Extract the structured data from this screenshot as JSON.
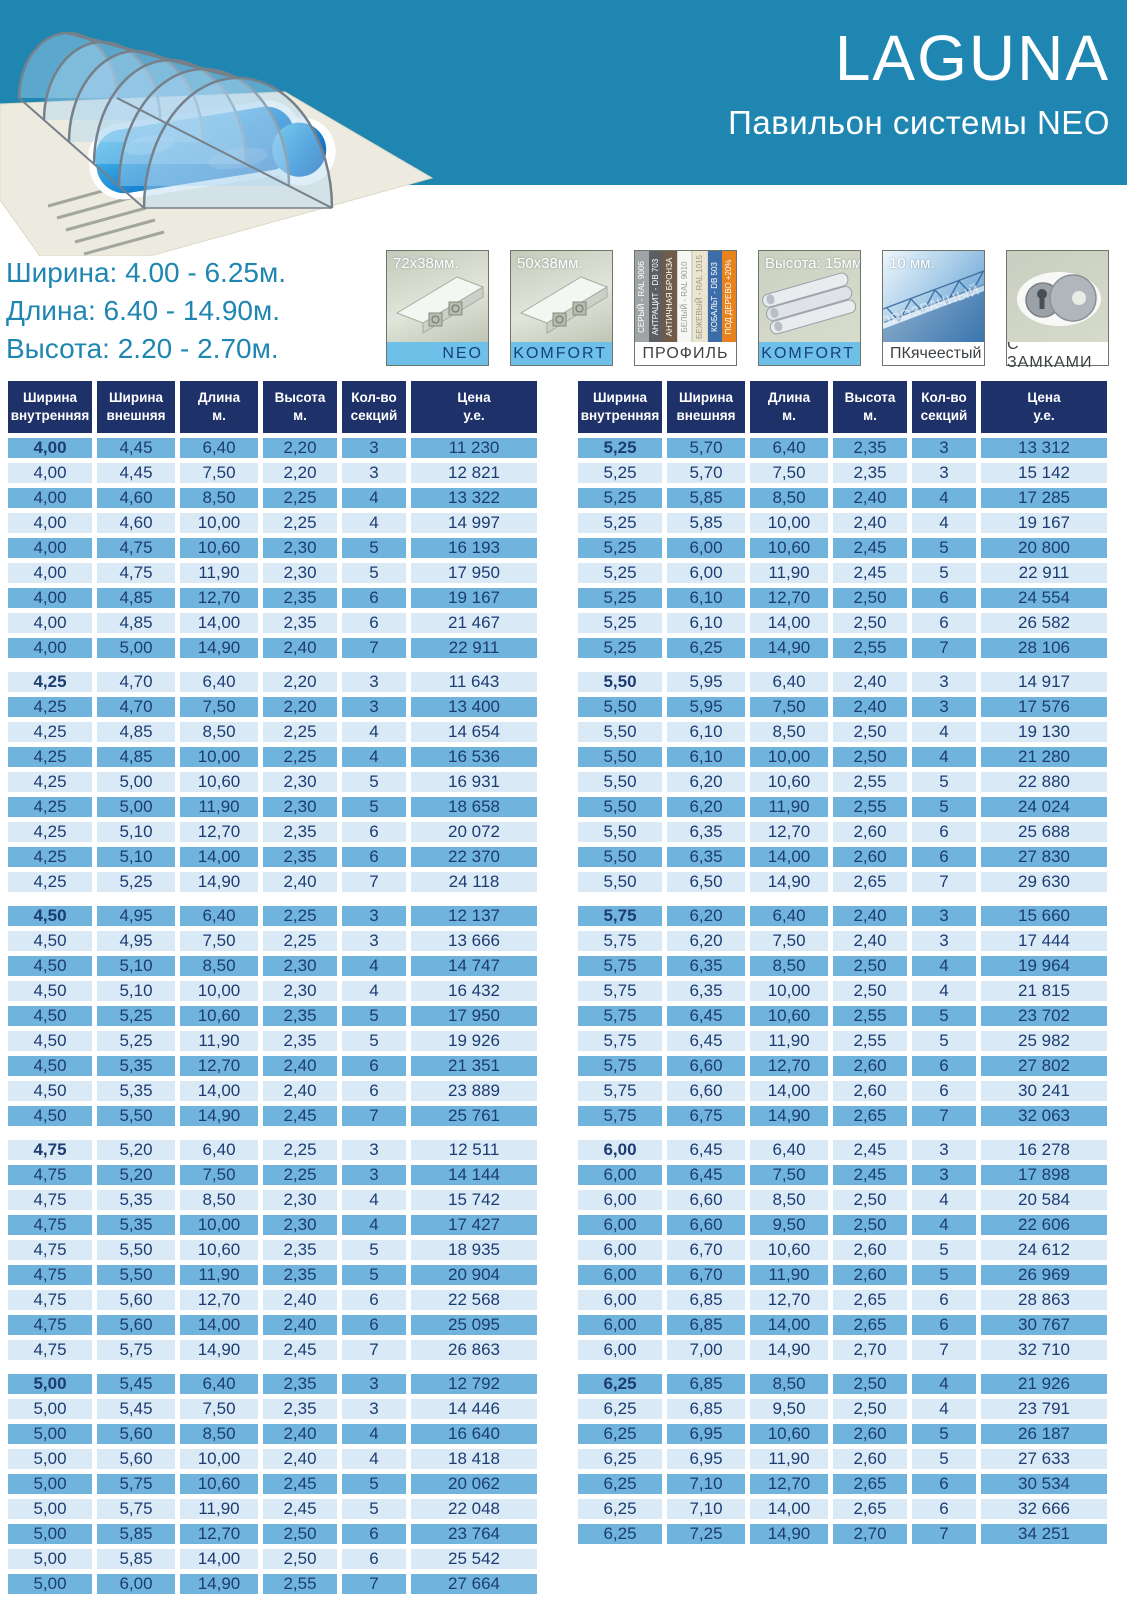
{
  "colors": {
    "header_blue": "#1f86b2",
    "navy": "#1e3168",
    "cell_text": "#1c3c72",
    "row_dark": "#70b4dd",
    "row_light": "#d9e9f6",
    "band_blue": "#6ec0e8"
  },
  "header": {
    "title": "LAGUNA",
    "subtitle": "Павильон системы NEO"
  },
  "specs": {
    "lines": [
      "Ширина: 4.00 - 6.25м.",
      "Длина: 6.40 - 14.90м.",
      "Высота: 2.20 - 2.70м."
    ]
  },
  "badges": [
    {
      "type": "profile",
      "caption": "72x38мм.",
      "band": "NEO",
      "band_style": "blue"
    },
    {
      "type": "profile",
      "caption": "50x38мм.",
      "band": "KOMFORT",
      "band_style": "blue"
    },
    {
      "type": "stripes",
      "caption": "",
      "band": "ПРОФИЛЬ",
      "band_style": "white",
      "stripes": [
        {
          "label": "СЕРЫЙ - RAL 9006",
          "bg": "#9fa4a8",
          "fg": "#ffffff"
        },
        {
          "label": "АНТРАЦИТ - DB 703",
          "bg": "#5c5e61",
          "fg": "#ffffff"
        },
        {
          "label": "АНТИЧНАЯ БРОНЗА",
          "bg": "#6f5b47",
          "fg": "#ffffff"
        },
        {
          "label": "БЕЛЫЙ - RAL 9010",
          "bg": "#f7f7f3",
          "fg": "#9b9b95"
        },
        {
          "label": "БЕЖЕВЫЙ - RAL 1015",
          "bg": "#ebe4cf",
          "fg": "#9b9b8f"
        },
        {
          "label": "КОБАЛЬТ - DB 503",
          "bg": "#3d6da9",
          "fg": "#ffffff"
        },
        {
          "label": "ПОД ДЕРЕВО +20%",
          "bg": "#e8821d",
          "fg": "#ffffff"
        }
      ]
    },
    {
      "type": "panel",
      "caption": "Высота: 15мм.",
      "band": "KOMFORT",
      "band_style": "blue"
    },
    {
      "type": "polycarb",
      "caption": "10 мм.",
      "overlay": "ПРОЗРАЧНЫЙ",
      "band_left": "ПК",
      "band_right": "ячеестый",
      "band_style": "white"
    },
    {
      "type": "lock",
      "caption": "",
      "band": "С ЗАМКАМИ",
      "band_style": "white"
    }
  ],
  "table": {
    "headers": [
      "Ширина\nвнутренняя",
      "Ширина\nвнешняя",
      "Длина\nм.",
      "Высота\nм.",
      "Кол-во\nсекций",
      "Цена\nу.е."
    ],
    "left_groups": [
      {
        "width": "4,00",
        "rows": [
          [
            "4,00",
            "4,45",
            "6,40",
            "2,20",
            "3",
            "11 230"
          ],
          [
            "4,00",
            "4,45",
            "7,50",
            "2,20",
            "3",
            "12 821"
          ],
          [
            "4,00",
            "4,60",
            "8,50",
            "2,25",
            "4",
            "13 322"
          ],
          [
            "4,00",
            "4,60",
            "10,00",
            "2,25",
            "4",
            "14 997"
          ],
          [
            "4,00",
            "4,75",
            "10,60",
            "2,30",
            "5",
            "16 193"
          ],
          [
            "4,00",
            "4,75",
            "11,90",
            "2,30",
            "5",
            "17 950"
          ],
          [
            "4,00",
            "4,85",
            "12,70",
            "2,35",
            "6",
            "19 167"
          ],
          [
            "4,00",
            "4,85",
            "14,00",
            "2,35",
            "6",
            "21 467"
          ],
          [
            "4,00",
            "5,00",
            "14,90",
            "2,40",
            "7",
            "22 911"
          ]
        ]
      },
      {
        "width": "4,25",
        "rows": [
          [
            "4,25",
            "4,70",
            "6,40",
            "2,20",
            "3",
            "11 643"
          ],
          [
            "4,25",
            "4,70",
            "7,50",
            "2,20",
            "3",
            "13 400"
          ],
          [
            "4,25",
            "4,85",
            "8,50",
            "2,25",
            "4",
            "14 654"
          ],
          [
            "4,25",
            "4,85",
            "10,00",
            "2,25",
            "4",
            "16 536"
          ],
          [
            "4,25",
            "5,00",
            "10,60",
            "2,30",
            "5",
            "16 931"
          ],
          [
            "4,25",
            "5,00",
            "11,90",
            "2,30",
            "5",
            "18 658"
          ],
          [
            "4,25",
            "5,10",
            "12,70",
            "2,35",
            "6",
            "20 072"
          ],
          [
            "4,25",
            "5,10",
            "14,00",
            "2,35",
            "6",
            "22 370"
          ],
          [
            "4,25",
            "5,25",
            "14,90",
            "2,40",
            "7",
            "24 118"
          ]
        ]
      },
      {
        "width": "4,50",
        "rows": [
          [
            "4,50",
            "4,95",
            "6,40",
            "2,25",
            "3",
            "12 137"
          ],
          [
            "4,50",
            "4,95",
            "7,50",
            "2,25",
            "3",
            "13 666"
          ],
          [
            "4,50",
            "5,10",
            "8,50",
            "2,30",
            "4",
            "14 747"
          ],
          [
            "4,50",
            "5,10",
            "10,00",
            "2,30",
            "4",
            "16 432"
          ],
          [
            "4,50",
            "5,25",
            "10,60",
            "2,35",
            "5",
            "17 950"
          ],
          [
            "4,50",
            "5,25",
            "11,90",
            "2,35",
            "5",
            "19 926"
          ],
          [
            "4,50",
            "5,35",
            "12,70",
            "2,40",
            "6",
            "21 351"
          ],
          [
            "4,50",
            "5,35",
            "14,00",
            "2,40",
            "6",
            "23 889"
          ],
          [
            "4,50",
            "5,50",
            "14,90",
            "2,45",
            "7",
            "25 761"
          ]
        ]
      },
      {
        "width": "4,75",
        "rows": [
          [
            "4,75",
            "5,20",
            "6,40",
            "2,25",
            "3",
            "12 511"
          ],
          [
            "4,75",
            "5,20",
            "7,50",
            "2,25",
            "3",
            "14 144"
          ],
          [
            "4,75",
            "5,35",
            "8,50",
            "2,30",
            "4",
            "15 742"
          ],
          [
            "4,75",
            "5,35",
            "10,00",
            "2,30",
            "4",
            "17 427"
          ],
          [
            "4,75",
            "5,50",
            "10,60",
            "2,35",
            "5",
            "18 935"
          ],
          [
            "4,75",
            "5,50",
            "11,90",
            "2,35",
            "5",
            "20 904"
          ],
          [
            "4,75",
            "5,60",
            "12,70",
            "2,40",
            "6",
            "22 568"
          ],
          [
            "4,75",
            "5,60",
            "14,00",
            "2,40",
            "6",
            "25 095"
          ],
          [
            "4,75",
            "5,75",
            "14,90",
            "2,45",
            "7",
            "26 863"
          ]
        ]
      },
      {
        "width": "5,00",
        "rows": [
          [
            "5,00",
            "5,45",
            "6,40",
            "2,35",
            "3",
            "12 792"
          ],
          [
            "5,00",
            "5,45",
            "7,50",
            "2,35",
            "3",
            "14 446"
          ],
          [
            "5,00",
            "5,60",
            "8,50",
            "2,40",
            "4",
            "16 640"
          ],
          [
            "5,00",
            "5,60",
            "10,00",
            "2,40",
            "4",
            "18 418"
          ],
          [
            "5,00",
            "5,75",
            "10,60",
            "2,45",
            "5",
            "20 062"
          ],
          [
            "5,00",
            "5,75",
            "11,90",
            "2,45",
            "5",
            "22 048"
          ],
          [
            "5,00",
            "5,85",
            "12,70",
            "2,50",
            "6",
            "23 764"
          ],
          [
            "5,00",
            "5,85",
            "14,00",
            "2,50",
            "6",
            "25 542"
          ],
          [
            "5,00",
            "6,00",
            "14,90",
            "2,55",
            "7",
            "27 664"
          ]
        ]
      }
    ],
    "right_groups": [
      {
        "width": "5,25",
        "rows": [
          [
            "5,25",
            "5,70",
            "6,40",
            "2,35",
            "3",
            "13 312"
          ],
          [
            "5,25",
            "5,70",
            "7,50",
            "2,35",
            "3",
            "15 142"
          ],
          [
            "5,25",
            "5,85",
            "8,50",
            "2,40",
            "4",
            "17 285"
          ],
          [
            "5,25",
            "5,85",
            "10,00",
            "2,40",
            "4",
            "19 167"
          ],
          [
            "5,25",
            "6,00",
            "10,60",
            "2,45",
            "5",
            "20 800"
          ],
          [
            "5,25",
            "6,00",
            "11,90",
            "2,45",
            "5",
            "22 911"
          ],
          [
            "5,25",
            "6,10",
            "12,70",
            "2,50",
            "6",
            "24 554"
          ],
          [
            "5,25",
            "6,10",
            "14,00",
            "2,50",
            "6",
            "26 582"
          ],
          [
            "5,25",
            "6,25",
            "14,90",
            "2,55",
            "7",
            "28 106"
          ]
        ]
      },
      {
        "width": "5,50",
        "rows": [
          [
            "5,50",
            "5,95",
            "6,40",
            "2,40",
            "3",
            "14 917"
          ],
          [
            "5,50",
            "5,95",
            "7,50",
            "2,40",
            "3",
            "17 576"
          ],
          [
            "5,50",
            "6,10",
            "8,50",
            "2,50",
            "4",
            "19 130"
          ],
          [
            "5,50",
            "6,10",
            "10,00",
            "2,50",
            "4",
            "21 280"
          ],
          [
            "5,50",
            "6,20",
            "10,60",
            "2,55",
            "5",
            "22 880"
          ],
          [
            "5,50",
            "6,20",
            "11,90",
            "2,55",
            "5",
            "24 024"
          ],
          [
            "5,50",
            "6,35",
            "12,70",
            "2,60",
            "6",
            "25 688"
          ],
          [
            "5,50",
            "6,35",
            "14,00",
            "2,60",
            "6",
            "27 830"
          ],
          [
            "5,50",
            "6,50",
            "14,90",
            "2,65",
            "7",
            "29 630"
          ]
        ]
      },
      {
        "width": "5,75",
        "rows": [
          [
            "5,75",
            "6,20",
            "6,40",
            "2,40",
            "3",
            "15 660"
          ],
          [
            "5,75",
            "6,20",
            "7,50",
            "2,40",
            "3",
            "17 444"
          ],
          [
            "5,75",
            "6,35",
            "8,50",
            "2,50",
            "4",
            "19 964"
          ],
          [
            "5,75",
            "6,35",
            "10,00",
            "2,50",
            "4",
            "21 815"
          ],
          [
            "5,75",
            "6,45",
            "10,60",
            "2,55",
            "5",
            "23 702"
          ],
          [
            "5,75",
            "6,45",
            "11,90",
            "2,55",
            "5",
            "25 982"
          ],
          [
            "5,75",
            "6,60",
            "12,70",
            "2,60",
            "6",
            "27 802"
          ],
          [
            "5,75",
            "6,60",
            "14,00",
            "2,60",
            "6",
            "30 241"
          ],
          [
            "5,75",
            "6,75",
            "14,90",
            "2,65",
            "7",
            "32 063"
          ]
        ]
      },
      {
        "width": "6,00",
        "rows": [
          [
            "6,00",
            "6,45",
            "6,40",
            "2,45",
            "3",
            "16 278"
          ],
          [
            "6,00",
            "6,45",
            "7,50",
            "2,45",
            "3",
            "17 898"
          ],
          [
            "6,00",
            "6,60",
            "8,50",
            "2,50",
            "4",
            "20 584"
          ],
          [
            "6,00",
            "6,60",
            "9,50",
            "2,50",
            "4",
            "22 606"
          ],
          [
            "6,00",
            "6,70",
            "10,60",
            "2,60",
            "5",
            "24 612"
          ],
          [
            "6,00",
            "6,70",
            "11,90",
            "2,60",
            "5",
            "26 969"
          ],
          [
            "6,00",
            "6,85",
            "12,70",
            "2,65",
            "6",
            "28 863"
          ],
          [
            "6,00",
            "6,85",
            "14,00",
            "2,65",
            "6",
            "30 767"
          ],
          [
            "6,00",
            "7,00",
            "14,90",
            "2,70",
            "7",
            "32 710"
          ]
        ]
      },
      {
        "width": "6,25",
        "rows": [
          [
            "6,25",
            "6,85",
            "8,50",
            "2,50",
            "4",
            "21 926"
          ],
          [
            "6,25",
            "6,85",
            "9,50",
            "2,50",
            "4",
            "23 791"
          ],
          [
            "6,25",
            "6,95",
            "10,60",
            "2,60",
            "5",
            "26 187"
          ],
          [
            "6,25",
            "6,95",
            "11,90",
            "2,60",
            "5",
            "27 633"
          ],
          [
            "6,25",
            "7,10",
            "12,70",
            "2,65",
            "6",
            "30 534"
          ],
          [
            "6,25",
            "7,10",
            "14,00",
            "2,65",
            "6",
            "32 666"
          ],
          [
            "6,25",
            "7,25",
            "14,90",
            "2,70",
            "7",
            "34 251"
          ]
        ]
      }
    ]
  }
}
